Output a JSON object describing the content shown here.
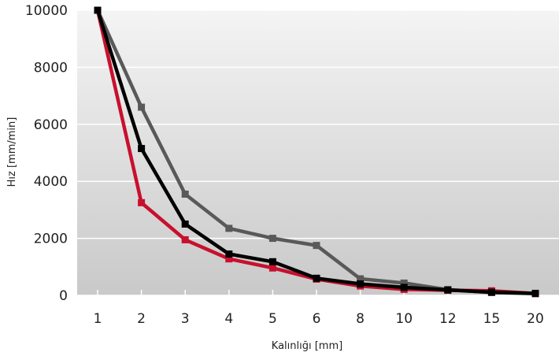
{
  "chart_data": {
    "type": "line",
    "title": "",
    "xlabel": "Kalınlığı [mm]",
    "ylabel": "Hız [mm/min]",
    "categories": [
      "1",
      "2",
      "3",
      "4",
      "5",
      "6",
      "8",
      "10",
      "12",
      "15",
      "20"
    ],
    "ylim": [
      0,
      10000
    ],
    "yticks": [
      "0",
      "2000",
      "4000",
      "6000",
      "8000",
      "10000"
    ],
    "grid": true,
    "legend": "none",
    "series": [
      {
        "color": "#595959",
        "values": [
          10000,
          6600,
          3550,
          2350,
          2000,
          1750,
          580,
          430,
          200,
          100,
          60
        ]
      },
      {
        "color": "#c8102e",
        "values": [
          10000,
          3250,
          1950,
          1280,
          960,
          570,
          330,
          210,
          180,
          160,
          60
        ]
      },
      {
        "color": "#000000",
        "values": [
          10000,
          5150,
          2500,
          1450,
          1180,
          600,
          400,
          280,
          190,
          110,
          70
        ]
      }
    ]
  }
}
